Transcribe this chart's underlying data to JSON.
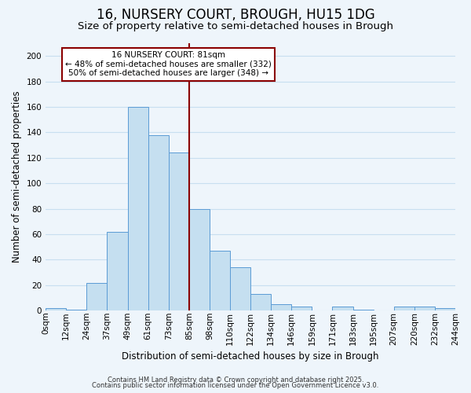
{
  "title": "16, NURSERY COURT, BROUGH, HU15 1DG",
  "subtitle": "Size of property relative to semi-detached houses in Brough",
  "xlabel": "Distribution of semi-detached houses by size in Brough",
  "ylabel": "Number of semi-detached properties",
  "bar_labels": [
    "0sqm",
    "12sqm",
    "24sqm",
    "37sqm",
    "49sqm",
    "61sqm",
    "73sqm",
    "85sqm",
    "98sqm",
    "110sqm",
    "122sqm",
    "134sqm",
    "146sqm",
    "159sqm",
    "171sqm",
    "183sqm",
    "195sqm",
    "207sqm",
    "220sqm",
    "232sqm",
    "244sqm"
  ],
  "bar_values": [
    2,
    1,
    22,
    62,
    160,
    138,
    124,
    80,
    47,
    34,
    13,
    5,
    3,
    0,
    3,
    1,
    0,
    3,
    3,
    2
  ],
  "bar_color": "#c5dff0",
  "bar_edge_color": "#5b9bd5",
  "marker_line_index": 7,
  "marker_label": "16 NURSERY COURT: 81sqm",
  "marker_smaller_pct": "48%",
  "marker_smaller_n": 332,
  "marker_larger_pct": "50%",
  "marker_larger_n": 348,
  "marker_color": "#8b0000",
  "background_color": "#eef5fb",
  "grid_color": "#c8dff0",
  "footer1": "Contains HM Land Registry data © Crown copyright and database right 2025.",
  "footer2": "Contains public sector information licensed under the Open Government Licence v3.0.",
  "ylim": [
    0,
    210
  ],
  "yticks": [
    0,
    20,
    40,
    60,
    80,
    100,
    120,
    140,
    160,
    180,
    200
  ],
  "title_fontsize": 12,
  "subtitle_fontsize": 9.5,
  "axis_label_fontsize": 8.5,
  "tick_fontsize": 7.5,
  "annotation_fontsize": 7.5,
  "footer_fontsize": 6.0
}
